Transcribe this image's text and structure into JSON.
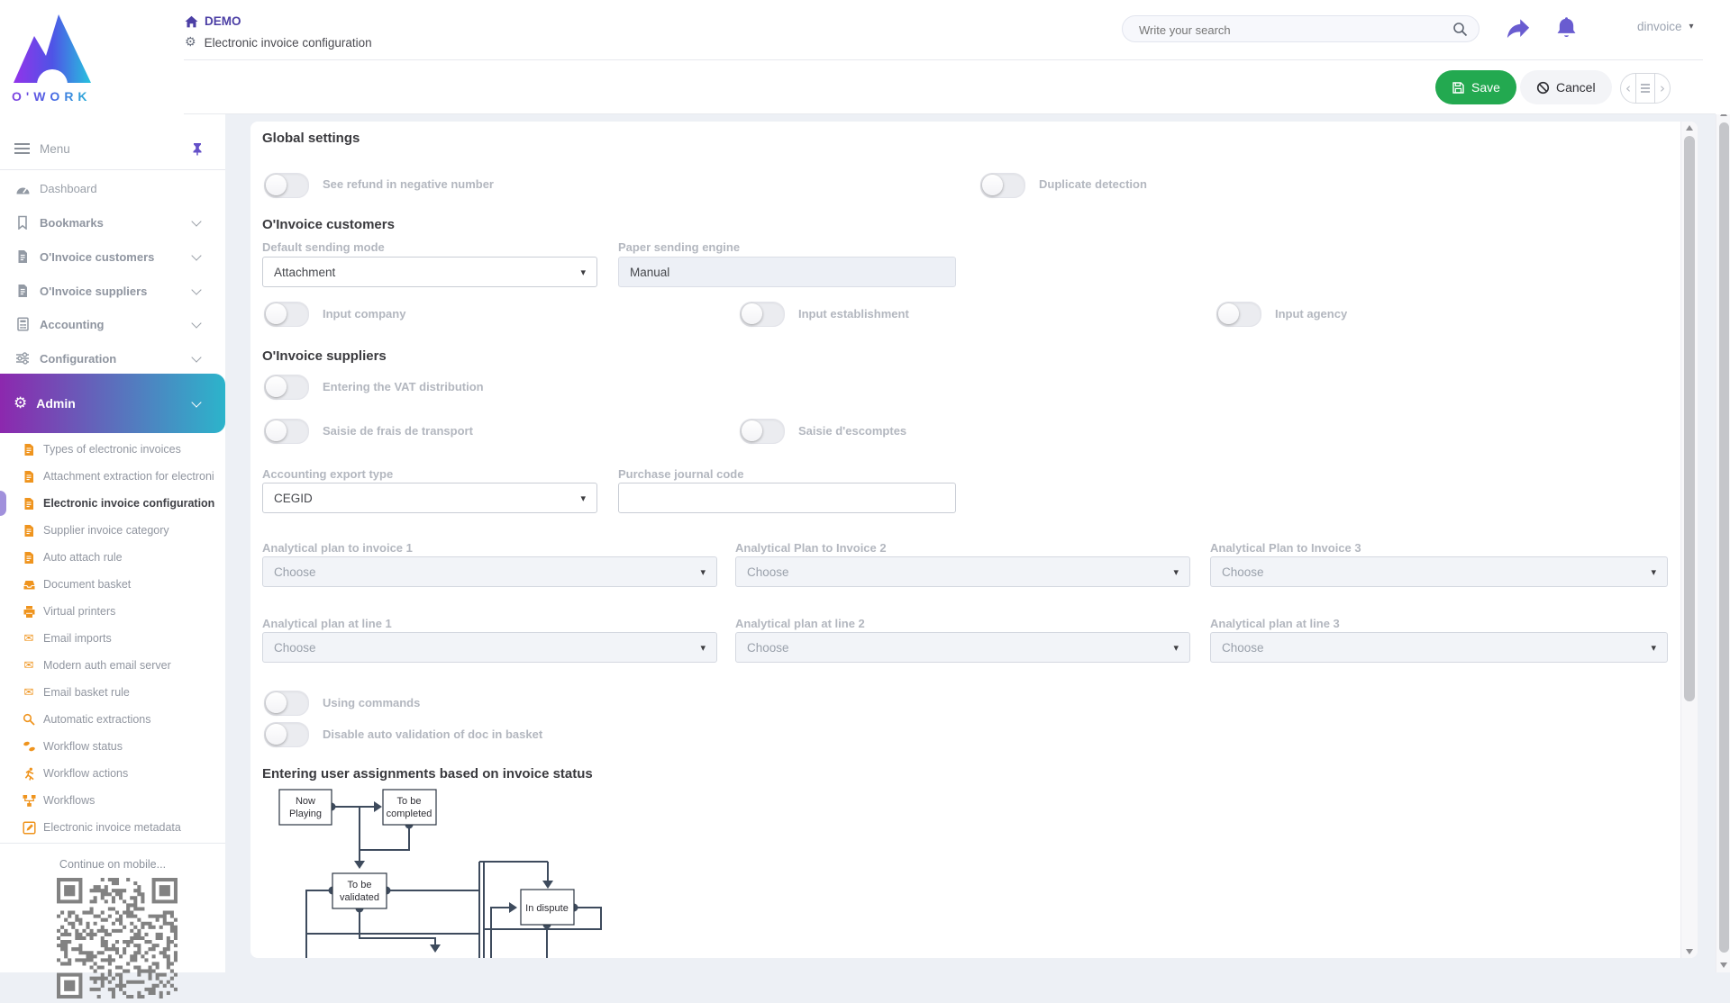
{
  "colors": {
    "accent_purple": "#4c3fa5",
    "icon_purple": "#6558cf",
    "admin_gradient_start": "#8c28ae",
    "admin_gradient_end": "#2cb4cb",
    "orange_icon": "#ef941e",
    "save_green": "#23a950",
    "diagram_stroke": "#3e4b5d"
  },
  "icons": {
    "gear": "⚙",
    "envelope": "✉",
    "caret_down": "▾",
    "chevron_left": "‹",
    "chevron_right": "›"
  },
  "brand": {
    "name": "O'WORK"
  },
  "header": {
    "breadcrumb": {
      "home": "DEMO",
      "page": "Electronic invoice configuration"
    },
    "search": {
      "placeholder": "Write your search"
    },
    "user": {
      "name": "dinvoice"
    },
    "actions": {
      "save": "Save",
      "cancel": "Cancel"
    }
  },
  "sidebar": {
    "menu_label": "Menu",
    "items": [
      {
        "label": "Dashboard"
      },
      {
        "label": "Bookmarks"
      },
      {
        "label": "O'Invoice customers"
      },
      {
        "label": "O'Invoice suppliers"
      },
      {
        "label": "Accounting"
      },
      {
        "label": "Configuration"
      }
    ],
    "admin_label": "Admin",
    "admin_items": [
      {
        "label": "Types of electronic invoices"
      },
      {
        "label": "Attachment extraction for electroni"
      },
      {
        "label": "Electronic invoice configuration"
      },
      {
        "label": "Supplier invoice category"
      },
      {
        "label": "Auto attach rule"
      },
      {
        "label": "Document basket"
      },
      {
        "label": "Virtual printers"
      },
      {
        "label": "Email imports"
      },
      {
        "label": "Modern auth email server"
      },
      {
        "label": "Email basket rule"
      },
      {
        "label": "Automatic extractions"
      },
      {
        "label": "Workflow status"
      },
      {
        "label": "Workflow actions"
      },
      {
        "label": "Workflows"
      },
      {
        "label": "Electronic invoice metadata"
      }
    ],
    "mobile_hint": "Continue on mobile..."
  },
  "main": {
    "global": {
      "title": "Global settings",
      "see_refund": "See refund in negative number",
      "duplicate": "Duplicate detection"
    },
    "customers": {
      "title": "O'Invoice customers",
      "default_sending_mode": {
        "label": "Default sending mode",
        "value": "Attachment"
      },
      "paper_engine": {
        "label": "Paper sending engine",
        "value": "Manual"
      },
      "input_company": "Input company",
      "input_establishment": "Input establishment",
      "input_agency": "Input agency"
    },
    "suppliers": {
      "title": "O'Invoice suppliers",
      "vat": "Entering the VAT distribution",
      "transport": "Saisie de frais de transport",
      "discount": "Saisie d'escomptes",
      "export_type": {
        "label": "Accounting export type",
        "value": "CEGID"
      },
      "journal_code": {
        "label": "Purchase journal code",
        "value": ""
      },
      "plan_invoice_1": {
        "label": "Analytical plan to invoice 1",
        "value": "Choose"
      },
      "plan_invoice_2": {
        "label": "Analytical Plan to Invoice 2",
        "value": "Choose"
      },
      "plan_invoice_3": {
        "label": "Analytical Plan to Invoice 3",
        "value": "Choose"
      },
      "plan_line_1": {
        "label": "Analytical plan at line 1",
        "value": "Choose"
      },
      "plan_line_2": {
        "label": "Analytical plan at line 2",
        "value": "Choose"
      },
      "plan_line_3": {
        "label": "Analytical plan at line 3",
        "value": "Choose"
      },
      "using_commands": "Using commands",
      "disable_auto": "Disable auto validation of doc in basket"
    },
    "workflow": {
      "title": "Entering user assignments based on invoice status",
      "nodes": [
        {
          "line1": "Now",
          "line2": "Playing"
        },
        {
          "line1": "To be",
          "line2": "completed"
        },
        {
          "line1": "To be",
          "line2": "validated"
        },
        {
          "line1": "In dispute",
          "line2": ""
        }
      ]
    }
  }
}
